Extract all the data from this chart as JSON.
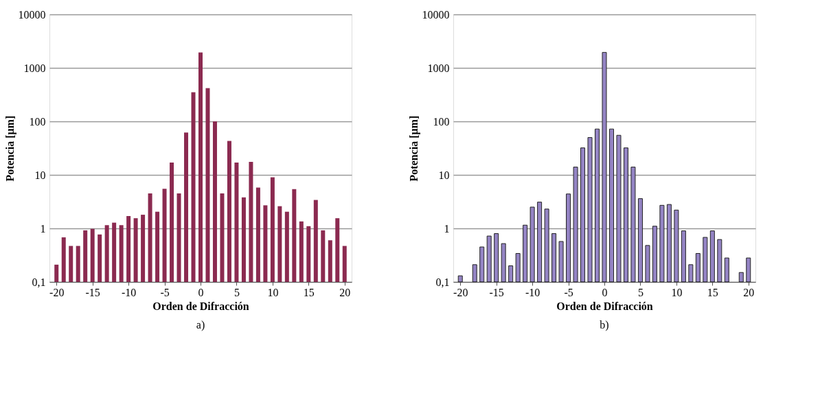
{
  "chart_data": [
    {
      "type": "bar",
      "title": "a)",
      "xlabel": "Orden de Difracción",
      "ylabel": "Potencia [µm]",
      "log": "y",
      "grid": "y",
      "x": [
        -20,
        -19,
        -18,
        -17,
        -16,
        -15,
        -14,
        -13,
        -12,
        -11,
        -10,
        -9,
        -8,
        -7,
        -6,
        -5,
        -4,
        -3,
        -2,
        -1,
        0,
        1,
        2,
        3,
        4,
        5,
        6,
        7,
        8,
        9,
        10,
        11,
        12,
        13,
        14,
        15,
        16,
        17,
        18,
        19,
        20
      ],
      "series": [
        {
          "color": "#8b2a50",
          "values": [
            0.21,
            0.68,
            0.47,
            0.47,
            0.92,
            0.98,
            0.77,
            1.15,
            1.28,
            1.15,
            1.7,
            1.55,
            1.8,
            4.5,
            2.05,
            5.5,
            17,
            4.5,
            62,
            350,
            1950,
            420,
            100,
            4.5,
            43,
            17,
            3.8,
            17.5,
            5.8,
            2.7,
            9,
            2.6,
            2.05,
            5.4,
            1.35,
            1.1,
            3.4,
            0.92,
            0.6,
            1.55,
            0.47
          ]
        }
      ],
      "xlim": [
        -20.5,
        20.5
      ],
      "xticks": [
        -20,
        -15,
        -10,
        -5,
        0,
        5,
        10,
        15,
        20
      ],
      "ylim": [
        0.1,
        10000
      ],
      "yticks": [
        {
          "value": 0.1,
          "label": "0,1"
        },
        1,
        10,
        100,
        1000,
        10000
      ]
    },
    {
      "type": "bar",
      "title": "b)",
      "xlabel": "Orden de Difracción",
      "ylabel": "Potencia [µm]",
      "log": "y",
      "grid": "y",
      "x": [
        -20,
        -19,
        -18,
        -17,
        -16,
        -15,
        -14,
        -13,
        -12,
        -11,
        -10,
        -9,
        -8,
        -7,
        -6,
        -5,
        -4,
        -3,
        -2,
        -1,
        0,
        1,
        2,
        3,
        4,
        5,
        6,
        7,
        8,
        9,
        10,
        11,
        12,
        13,
        14,
        15,
        16,
        17,
        18,
        19,
        20
      ],
      "series": [
        {
          "color": "#9484c4",
          "values": [
            0.13,
            0.1,
            0.21,
            0.45,
            0.72,
            0.8,
            0.52,
            0.2,
            0.34,
            1.15,
            2.5,
            3.1,
            2.3,
            0.8,
            0.57,
            4.4,
            14,
            32,
            50,
            72,
            1950,
            72,
            55,
            32,
            14,
            3.6,
            0.48,
            1.1,
            2.7,
            2.8,
            2.2,
            0.9,
            0.21,
            0.34,
            0.68,
            0.9,
            0.62,
            0.28,
            0.1,
            0.15,
            0.28
          ]
        }
      ],
      "xlim": [
        -20.5,
        20.5
      ],
      "xticks": [
        -20,
        -15,
        -10,
        -5,
        0,
        5,
        10,
        15,
        20
      ],
      "ylim": [
        0.1,
        10000
      ],
      "yticks": [
        {
          "value": 0.1,
          "label": "0,1"
        },
        1,
        10,
        100,
        1000,
        10000
      ]
    }
  ]
}
